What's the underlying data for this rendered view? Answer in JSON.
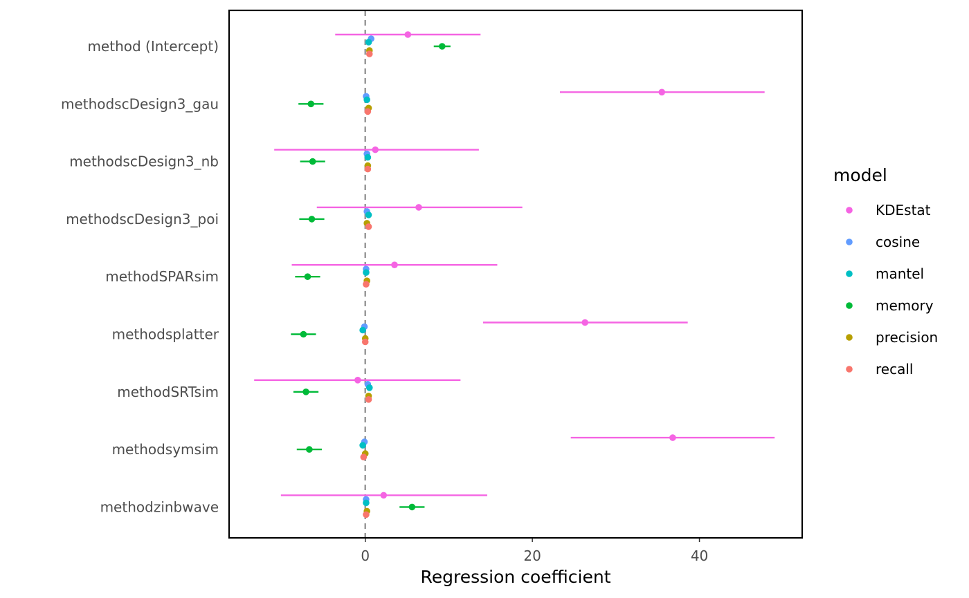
{
  "chart_data": {
    "type": "scatter",
    "xlabel": "Regression coefficient",
    "xlim": [
      -16.3,
      52.3
    ],
    "xticks": [
      0,
      20,
      40
    ],
    "categories": [
      "method (Intercept)",
      "methodscDesign3_gau",
      "methodscDesign3_nb",
      "methodscDesign3_poi",
      "methodSPARsim",
      "methodsplatter",
      "methodSRTsim",
      "methodsymsim",
      "methodzinbwave"
    ],
    "reference_line_x": 0,
    "legend": {
      "title": "model",
      "placement": "right"
    },
    "series": [
      {
        "name": "KDEstat",
        "color": "#F564E3",
        "estimates": [
          5.1,
          35.5,
          1.2,
          6.4,
          3.5,
          26.3,
          -0.9,
          36.8,
          2.2
        ],
        "lower": [
          -3.6,
          23.3,
          -10.9,
          -5.8,
          -8.8,
          14.1,
          -13.3,
          24.6,
          -10.1
        ],
        "upper": [
          13.8,
          47.8,
          13.6,
          18.8,
          15.8,
          38.6,
          11.4,
          49.0,
          14.6
        ]
      },
      {
        "name": "cosine",
        "color": "#619CFF",
        "estimates": [
          0.7,
          0.1,
          0.2,
          0.2,
          0.1,
          -0.1,
          0.3,
          -0.1,
          0.1
        ]
      },
      {
        "name": "mantel",
        "color": "#00BFC4",
        "estimates": [
          0.4,
          0.2,
          0.3,
          0.4,
          0.1,
          -0.3,
          0.5,
          -0.3,
          0.1
        ]
      },
      {
        "name": "memory",
        "color": "#00BA38",
        "estimates": [
          9.2,
          -6.5,
          -6.3,
          -6.4,
          -6.9,
          -7.4,
          -7.1,
          -6.7,
          5.6
        ],
        "lower": [
          8.2,
          -8.0,
          -7.8,
          -7.9,
          -8.4,
          -8.9,
          -8.6,
          -8.2,
          4.1
        ],
        "upper": [
          10.2,
          -5.0,
          -4.8,
          -4.9,
          -5.4,
          -5.9,
          -5.6,
          -5.2,
          7.1
        ]
      },
      {
        "name": "precision",
        "color": "#B79F00",
        "estimates": [
          0.5,
          0.4,
          0.3,
          0.2,
          0.2,
          0.0,
          0.4,
          0.0,
          0.2
        ]
      },
      {
        "name": "recall",
        "color": "#F8766D",
        "estimates": [
          0.5,
          0.3,
          0.3,
          0.4,
          0.1,
          0.0,
          0.4,
          -0.2,
          0.1
        ]
      }
    ]
  }
}
